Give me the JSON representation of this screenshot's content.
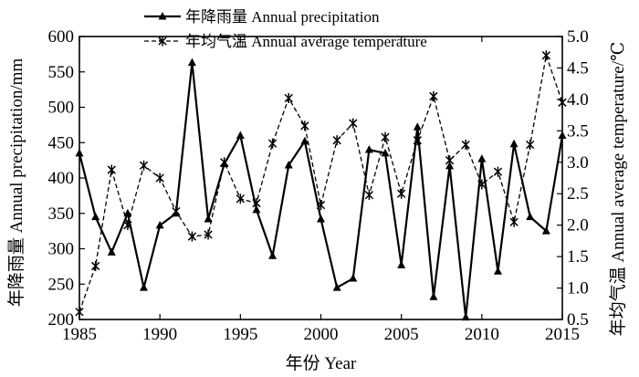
{
  "chart_data": {
    "type": "line",
    "x": [
      1985,
      1986,
      1987,
      1988,
      1989,
      1990,
      1991,
      1992,
      1993,
      1994,
      1995,
      1996,
      1997,
      1998,
      1999,
      2000,
      2001,
      2002,
      2003,
      2004,
      2005,
      2006,
      2007,
      2008,
      2009,
      2010,
      2011,
      2012,
      2013,
      2014,
      2015
    ],
    "xlabel": "年份 Year",
    "xlim": [
      1985,
      2015
    ],
    "xticks": [
      1985,
      1990,
      1995,
      2000,
      2005,
      2010,
      2015
    ],
    "y_left": {
      "label": "年降雨量 Annual precipitation/mm",
      "lim": [
        200,
        600
      ],
      "ticks": [
        200,
        250,
        300,
        350,
        400,
        450,
        500,
        550,
        600
      ]
    },
    "y_right": {
      "label": "年均气温 Annual average temperature/℃",
      "lim": [
        0.5,
        5.0
      ],
      "ticks": [
        "0.5",
        "1.0",
        "1.5",
        "2.0",
        "2.5",
        "3.0",
        "3.5",
        "4.0",
        "4.5",
        "5.0"
      ]
    },
    "series": [
      {
        "name": "年降雨量 Annual precipitation",
        "axis": "left",
        "marker": "filled-triangle",
        "line": "solid",
        "values": [
          435,
          345,
          295,
          350,
          245,
          333,
          350,
          563,
          342,
          420,
          460,
          355,
          290,
          418,
          452,
          342,
          245,
          258,
          440,
          435,
          277,
          472,
          232,
          417,
          203,
          427,
          268,
          448,
          345,
          325,
          460
        ]
      },
      {
        "name": "年均气温 Annual average temperature",
        "axis": "right",
        "marker": "asterisk",
        "line": "dashed",
        "values": [
          0.62,
          1.35,
          2.88,
          2.0,
          2.95,
          2.75,
          2.22,
          1.82,
          1.85,
          3.0,
          2.42,
          2.35,
          3.3,
          4.02,
          3.58,
          2.32,
          3.35,
          3.62,
          2.48,
          3.4,
          2.5,
          3.35,
          4.05,
          3.03,
          3.28,
          2.65,
          2.85,
          2.05,
          3.28,
          4.7,
          3.95
        ]
      }
    ],
    "legend_position": "top-center",
    "grid": false
  }
}
